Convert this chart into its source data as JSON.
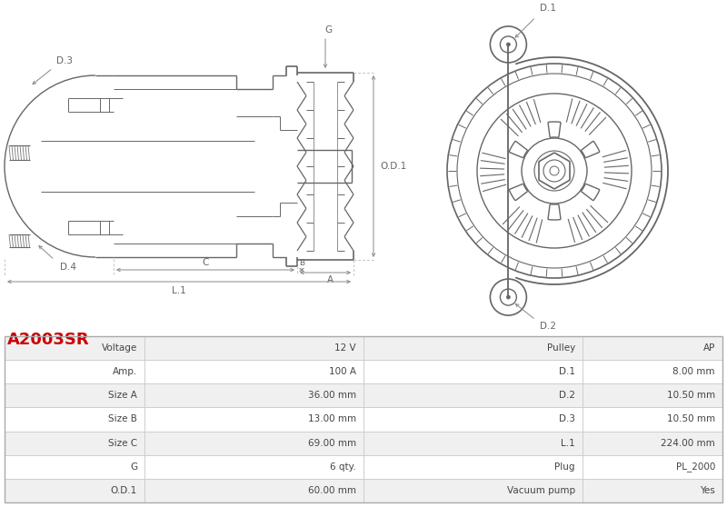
{
  "title": "A2003SR",
  "title_color": "#cc0000",
  "background_color": "#ffffff",
  "table_data": [
    [
      "Voltage",
      "12 V",
      "Pulley",
      "AP"
    ],
    [
      "Amp.",
      "100 A",
      "D.1",
      "8.00 mm"
    ],
    [
      "Size A",
      "36.00 mm",
      "D.2",
      "10.50 mm"
    ],
    [
      "Size B",
      "13.00 mm",
      "D.3",
      "10.50 mm"
    ],
    [
      "Size C",
      "69.00 mm",
      "L.1",
      "224.00 mm"
    ],
    [
      "G",
      "6 qty.",
      "Plug",
      "PL_2000"
    ],
    [
      "O.D.1",
      "60.00 mm",
      "Vacuum pump",
      "Yes"
    ]
  ],
  "table_row_bg1": "#f0f0f0",
  "table_row_bg2": "#ffffff",
  "table_border_color": "#cccccc",
  "drawing_color": "#666666",
  "dim_color": "#666666"
}
